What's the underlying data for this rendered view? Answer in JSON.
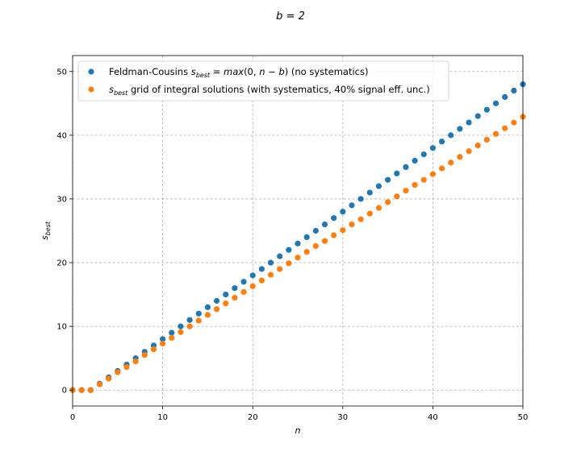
{
  "chart_data": {
    "type": "scatter",
    "title": "b = 2",
    "xlabel": "n",
    "ylabel": "s_best",
    "xlim": [
      0,
      50
    ],
    "ylim": [
      -2.5,
      52.5
    ],
    "xticks": [
      0,
      10,
      20,
      30,
      40,
      50
    ],
    "yticks": [
      0,
      10,
      20,
      30,
      40,
      50
    ],
    "grid": true,
    "legend_position": "top-left",
    "series": [
      {
        "name_parts": [
          {
            "text": "Feldman-Cousins ",
            "italic": false
          },
          {
            "text": "s",
            "italic": true
          },
          {
            "text": "best",
            "italic": true,
            "sub": true
          },
          {
            "text": " = ",
            "italic": false
          },
          {
            "text": "max",
            "italic": true
          },
          {
            "text": "(0, ",
            "italic": false
          },
          {
            "text": "n",
            "italic": true
          },
          {
            "text": " − ",
            "italic": false
          },
          {
            "text": "b",
            "italic": true
          },
          {
            "text": ") (no systematics)",
            "italic": false
          }
        ],
        "color": "#1f77b4",
        "x": [
          0,
          1,
          2,
          3,
          4,
          5,
          6,
          7,
          8,
          9,
          10,
          11,
          12,
          13,
          14,
          15,
          16,
          17,
          18,
          19,
          20,
          21,
          22,
          23,
          24,
          25,
          26,
          27,
          28,
          29,
          30,
          31,
          32,
          33,
          34,
          35,
          36,
          37,
          38,
          39,
          40,
          41,
          42,
          43,
          44,
          45,
          46,
          47,
          48,
          49,
          50
        ],
        "y": [
          0,
          0,
          0,
          1,
          2,
          3,
          4,
          5,
          6,
          7,
          8,
          9,
          10,
          11,
          12,
          13,
          14,
          15,
          16,
          17,
          18,
          19,
          20,
          21,
          22,
          23,
          24,
          25,
          26,
          27,
          28,
          29,
          30,
          31,
          32,
          33,
          34,
          35,
          36,
          37,
          38,
          39,
          40,
          41,
          42,
          43,
          44,
          45,
          46,
          47,
          48
        ]
      },
      {
        "name_parts": [
          {
            "text": "s",
            "italic": true
          },
          {
            "text": "best",
            "italic": true,
            "sub": true
          },
          {
            "text": " grid of integral solutions (with systematics, 40% signal eff. unc.)",
            "italic": false
          }
        ],
        "color": "#ff7f0e",
        "x": [
          0,
          1,
          2,
          3,
          4,
          5,
          6,
          7,
          8,
          9,
          10,
          11,
          12,
          13,
          14,
          15,
          16,
          17,
          18,
          19,
          20,
          21,
          22,
          23,
          24,
          25,
          26,
          27,
          28,
          29,
          30,
          31,
          32,
          33,
          34,
          35,
          36,
          37,
          38,
          39,
          40,
          41,
          42,
          43,
          44,
          45,
          46,
          47,
          48,
          49,
          50
        ],
        "y": [
          0,
          0,
          0,
          0.9,
          1.8,
          2.8,
          3.6,
          4.5,
          5.5,
          6.4,
          7.3,
          8.2,
          9.1,
          10.0,
          10.9,
          11.8,
          12.7,
          13.6,
          14.5,
          15.4,
          16.3,
          17.2,
          18.1,
          19.0,
          19.9,
          20.8,
          21.7,
          22.6,
          23.4,
          24.3,
          25.1,
          26.0,
          26.8,
          27.7,
          28.6,
          29.5,
          30.4,
          31.3,
          32.2,
          33.0,
          33.9,
          34.8,
          35.7,
          36.6,
          37.5,
          38.4,
          39.3,
          40.2,
          41.1,
          42.0,
          42.9
        ]
      }
    ]
  }
}
